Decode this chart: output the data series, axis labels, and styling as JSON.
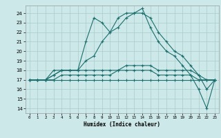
{
  "xlabel": "Humidex (Indice chaleur)",
  "xlim": [
    -0.5,
    23.5
  ],
  "ylim": [
    13.5,
    24.8
  ],
  "yticks": [
    14,
    15,
    16,
    17,
    18,
    19,
    20,
    21,
    22,
    23,
    24
  ],
  "xticks": [
    0,
    1,
    2,
    3,
    4,
    5,
    6,
    7,
    8,
    9,
    10,
    11,
    12,
    13,
    14,
    15,
    16,
    17,
    18,
    19,
    20,
    21,
    22,
    23
  ],
  "background_color": "#cce8e8",
  "grid_color": "#aacccc",
  "line_color": "#1a6e6e",
  "lines": [
    [
      17,
      17,
      17,
      18,
      18,
      18,
      18,
      21,
      23.5,
      23,
      22,
      23.5,
      24,
      24,
      24.5,
      22.5,
      21,
      20,
      19.5,
      18.5,
      17.5,
      16,
      14,
      17
    ],
    [
      17,
      17,
      17,
      17.5,
      18,
      18,
      18,
      19,
      19.5,
      21,
      22,
      22.5,
      23.5,
      24,
      24,
      23.5,
      22,
      21,
      20,
      19.5,
      18.5,
      17.5,
      16,
      17
    ],
    [
      17,
      17,
      17,
      17.5,
      18,
      18,
      18,
      18,
      18,
      18,
      18,
      18,
      18.5,
      18.5,
      18.5,
      18.5,
      18,
      18,
      18,
      18,
      18,
      17.5,
      17,
      17
    ],
    [
      17,
      17,
      17,
      17,
      17.5,
      17.5,
      17.5,
      17.5,
      17.5,
      17.5,
      17.5,
      18,
      18,
      18,
      18,
      18,
      17.5,
      17.5,
      17.5,
      17.5,
      17.5,
      17,
      17,
      17
    ],
    [
      17,
      17,
      17,
      17,
      17,
      17,
      17,
      17,
      17,
      17,
      17,
      17,
      17,
      17,
      17,
      17,
      17,
      17,
      17,
      17,
      17,
      17,
      17,
      17
    ]
  ]
}
